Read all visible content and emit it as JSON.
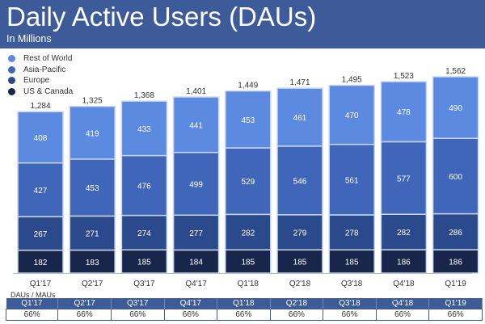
{
  "header": {
    "title": "Daily Active Users (DAUs)",
    "subtitle": "In Millions"
  },
  "chart_data": {
    "type": "bar",
    "stacked": true,
    "categories": [
      "Q1'17",
      "Q2'17",
      "Q3'17",
      "Q4'17",
      "Q1'18",
      "Q2'18",
      "Q3'18",
      "Q4'18",
      "Q1'19"
    ],
    "totals": [
      1284,
      1325,
      1368,
      1401,
      1449,
      1471,
      1495,
      1523,
      1562
    ],
    "series": [
      {
        "name": "US & Canada",
        "color": "#17264a",
        "values": [
          182,
          183,
          185,
          184,
          185,
          185,
          185,
          186,
          186
        ]
      },
      {
        "name": "Europe",
        "color": "#2b4a8b",
        "values": [
          267,
          271,
          274,
          277,
          282,
          279,
          278,
          282,
          286
        ]
      },
      {
        "name": "Asia-Pacific",
        "color": "#3f66b8",
        "values": [
          427,
          453,
          476,
          499,
          529,
          546,
          561,
          577,
          600
        ]
      },
      {
        "name": "Rest of World",
        "color": "#5b8ae0",
        "values": [
          408,
          419,
          433,
          441,
          453,
          461,
          470,
          478,
          490
        ]
      }
    ],
    "legend_placement": "top-left",
    "grid": false
  },
  "ratio_table": {
    "label": "DAUs / MAUs",
    "headers": [
      "Q1'17",
      "Q2'17",
      "Q3'17",
      "Q4'17",
      "Q1'18",
      "Q2'18",
      "Q3'18",
      "Q4'18",
      "Q1'19"
    ],
    "values": [
      "66%",
      "66%",
      "66%",
      "66%",
      "66%",
      "66%",
      "66%",
      "66%",
      "66%"
    ]
  }
}
